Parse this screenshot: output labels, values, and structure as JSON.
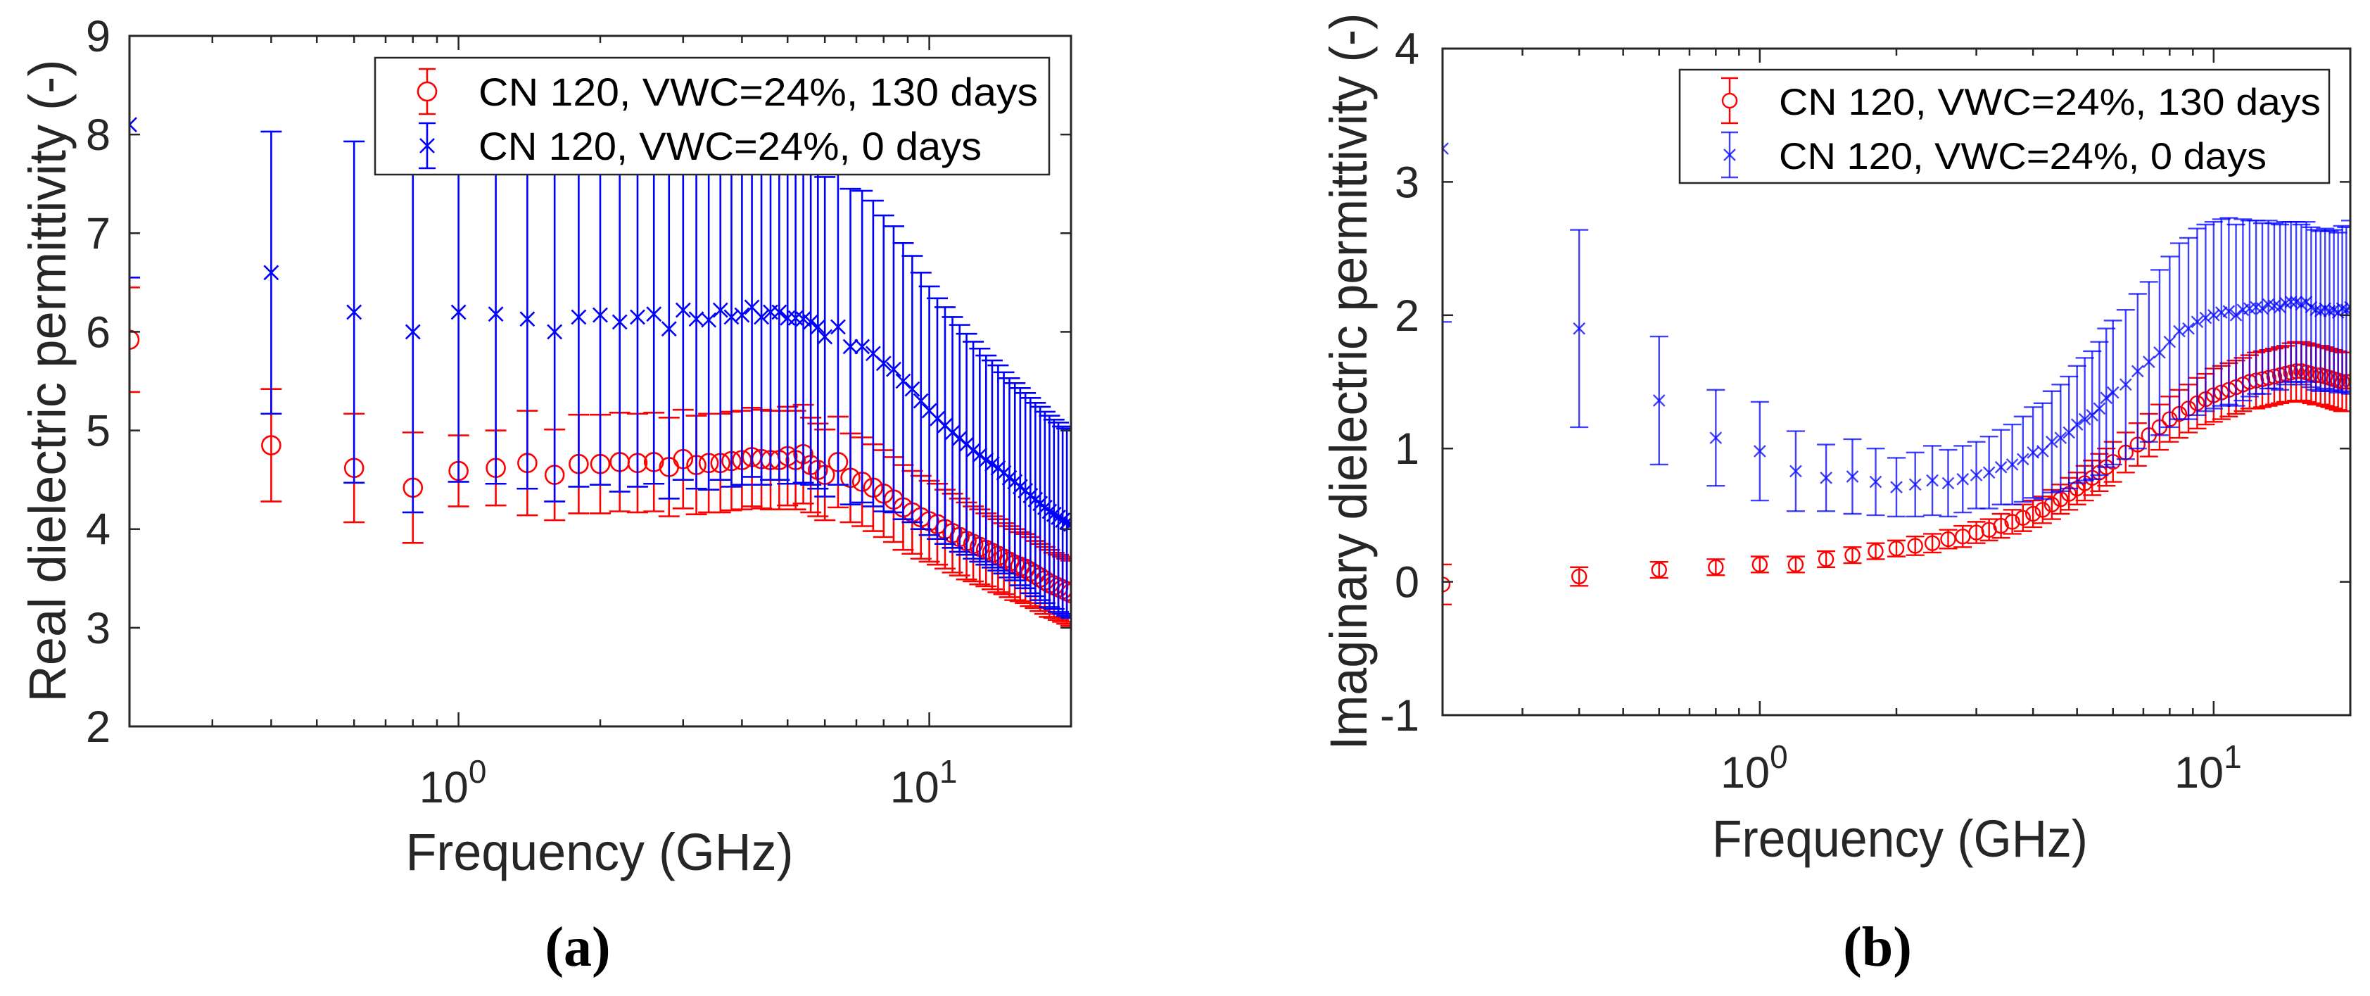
{
  "chart_data": [
    {
      "type": "scatter",
      "panel_caption": "(a)",
      "title": "",
      "xlabel": "Frequency (GHz)",
      "ylabel": "Real dielectric permittivity (-)",
      "xscale": "log",
      "xlim": [
        0.2,
        20
      ],
      "ylim": [
        2,
        9
      ],
      "yticks": [
        2,
        3,
        4,
        5,
        6,
        7,
        8,
        9
      ],
      "yticklabels": [
        "2",
        "3",
        "4",
        "5",
        "6",
        "7",
        "8",
        "9"
      ],
      "xticks": [
        1,
        10
      ],
      "xticklabels": [
        "10^0",
        "10^1"
      ],
      "grid": false,
      "legend_position": "top-right",
      "x": [
        0.2,
        0.4,
        0.6,
        0.8,
        1.0,
        1.2,
        1.4,
        1.6,
        1.8,
        2.0,
        2.2,
        2.4,
        2.6,
        2.8,
        3.0,
        3.2,
        3.4,
        3.6,
        3.8,
        4.0,
        4.2,
        4.4,
        4.6,
        4.8,
        5.0,
        5.2,
        5.4,
        5.6,
        5.8,
        6.0,
        6.4,
        6.8,
        7.2,
        7.6,
        8.0,
        8.4,
        8.8,
        9.2,
        9.6,
        10.0,
        10.4,
        10.8,
        11.2,
        11.6,
        12.0,
        12.4,
        12.8,
        13.2,
        13.6,
        14.0,
        14.4,
        14.8,
        15.2,
        15.6,
        16.0,
        16.4,
        16.8,
        17.2,
        17.6,
        18.0,
        18.4,
        18.8,
        19.2,
        19.6,
        20.0
      ],
      "series": [
        {
          "name": "CN 120, VWC=24%, 130 days",
          "color": "#ff0000",
          "marker": "circle",
          "values": [
            5.92,
            4.85,
            4.62,
            4.42,
            4.59,
            4.62,
            4.67,
            4.55,
            4.66,
            4.66,
            4.68,
            4.67,
            4.68,
            4.63,
            4.71,
            4.65,
            4.67,
            4.67,
            4.69,
            4.7,
            4.73,
            4.71,
            4.7,
            4.7,
            4.74,
            4.7,
            4.76,
            4.65,
            4.6,
            4.55,
            4.68,
            4.52,
            4.48,
            4.42,
            4.36,
            4.3,
            4.22,
            4.17,
            4.12,
            4.08,
            4.05,
            4.0,
            3.96,
            3.92,
            3.88,
            3.85,
            3.82,
            3.79,
            3.76,
            3.73,
            3.7,
            3.67,
            3.64,
            3.62,
            3.6,
            3.57,
            3.54,
            3.51,
            3.48,
            3.45,
            3.43,
            3.41,
            3.39,
            3.37,
            3.35
          ],
          "error": [
            0.53,
            0.57,
            0.55,
            0.56,
            0.36,
            0.38,
            0.53,
            0.46,
            0.5,
            0.5,
            0.5,
            0.5,
            0.5,
            0.5,
            0.5,
            0.5,
            0.5,
            0.5,
            0.5,
            0.5,
            0.5,
            0.5,
            0.5,
            0.5,
            0.5,
            0.5,
            0.5,
            0.48,
            0.47,
            0.46,
            0.46,
            0.45,
            0.45,
            0.44,
            0.44,
            0.43,
            0.43,
            0.42,
            0.42,
            0.41,
            0.41,
            0.4,
            0.4,
            0.39,
            0.39,
            0.38,
            0.38,
            0.37,
            0.37,
            0.37,
            0.36,
            0.36,
            0.36,
            0.35,
            0.35,
            0.35,
            0.34,
            0.34,
            0.34,
            0.34,
            0.33,
            0.33,
            0.33,
            0.33,
            0.33
          ]
        },
        {
          "name": "CN 120, VWC=24%, 0 days",
          "color": "#0000ff",
          "marker": "x",
          "values": [
            8.1,
            6.6,
            6.2,
            6.0,
            6.2,
            6.18,
            6.13,
            6.0,
            6.15,
            6.17,
            6.1,
            6.15,
            6.18,
            6.03,
            6.22,
            6.13,
            6.12,
            6.22,
            6.15,
            6.17,
            6.25,
            6.15,
            6.2,
            6.2,
            6.14,
            6.14,
            6.13,
            6.1,
            6.05,
            5.95,
            6.05,
            5.85,
            5.85,
            5.78,
            5.68,
            5.62,
            5.5,
            5.42,
            5.3,
            5.2,
            5.12,
            5.05,
            4.98,
            4.92,
            4.86,
            4.8,
            4.75,
            4.7,
            4.66,
            4.62,
            4.57,
            4.52,
            4.48,
            4.43,
            4.39,
            4.34,
            4.3,
            4.26,
            4.22,
            4.18,
            4.15,
            4.12,
            4.09,
            4.07,
            4.05
          ],
          "error": [
            1.55,
            1.43,
            1.73,
            1.83,
            1.72,
            1.72,
            1.72,
            1.72,
            1.72,
            1.72,
            1.72,
            1.72,
            1.72,
            1.72,
            1.72,
            1.72,
            1.72,
            1.72,
            1.72,
            1.72,
            1.72,
            1.7,
            1.7,
            1.7,
            1.68,
            1.68,
            1.66,
            1.65,
            1.64,
            1.62,
            1.6,
            1.6,
            1.58,
            1.55,
            1.5,
            1.45,
            1.4,
            1.35,
            1.3,
            1.26,
            1.22,
            1.2,
            1.17,
            1.15,
            1.12,
            1.1,
            1.08,
            1.06,
            1.05,
            1.04,
            1.02,
            1.01,
            1.0,
            1.0,
            0.99,
            0.99,
            0.98,
            0.98,
            0.97,
            0.97,
            0.96,
            0.96,
            0.95,
            0.95,
            0.95
          ]
        }
      ]
    },
    {
      "type": "scatter",
      "panel_caption": "(b)",
      "title": "",
      "xlabel": "Frequency (GHz)",
      "ylabel": "Imaginary dielectric permittivity (-)",
      "xscale": "log",
      "xlim": [
        0.2,
        20
      ],
      "ylim": [
        -1,
        4
      ],
      "yticks": [
        -1,
        0,
        1,
        2,
        3,
        4
      ],
      "yticklabels": [
        "-1",
        "0",
        "1",
        "2",
        "3",
        "4"
      ],
      "xticks": [
        1,
        10
      ],
      "xticklabels": [
        "10^0",
        "10^1"
      ],
      "grid": false,
      "legend_position": "top-right",
      "x": [
        0.2,
        0.4,
        0.6,
        0.8,
        1.0,
        1.2,
        1.4,
        1.6,
        1.8,
        2.0,
        2.2,
        2.4,
        2.6,
        2.8,
        3.0,
        3.2,
        3.4,
        3.6,
        3.8,
        4.0,
        4.2,
        4.4,
        4.6,
        4.8,
        5.0,
        5.2,
        5.4,
        5.6,
        5.8,
        6.0,
        6.4,
        6.8,
        7.2,
        7.6,
        8.0,
        8.4,
        8.8,
        9.2,
        9.6,
        10.0,
        10.4,
        10.8,
        11.2,
        11.6,
        12.0,
        12.4,
        12.8,
        13.2,
        13.6,
        14.0,
        14.4,
        14.8,
        15.2,
        15.6,
        16.0,
        16.4,
        16.8,
        17.2,
        17.6,
        18.0,
        18.4,
        18.8,
        19.2,
        19.6,
        20.0
      ],
      "series": [
        {
          "name": "CN 120, VWC=24%, 130 days",
          "color": "#ff0000",
          "marker": "circle",
          "values": [
            -0.02,
            0.04,
            0.09,
            0.11,
            0.13,
            0.13,
            0.17,
            0.2,
            0.23,
            0.25,
            0.27,
            0.29,
            0.32,
            0.34,
            0.37,
            0.39,
            0.42,
            0.45,
            0.48,
            0.51,
            0.54,
            0.58,
            0.62,
            0.66,
            0.7,
            0.74,
            0.78,
            0.82,
            0.86,
            0.9,
            0.97,
            1.03,
            1.1,
            1.16,
            1.22,
            1.26,
            1.3,
            1.34,
            1.37,
            1.4,
            1.42,
            1.44,
            1.46,
            1.48,
            1.5,
            1.51,
            1.52,
            1.53,
            1.54,
            1.55,
            1.56,
            1.57,
            1.58,
            1.58,
            1.57,
            1.56,
            1.55,
            1.55,
            1.54,
            1.53,
            1.52,
            1.51,
            1.5,
            1.5,
            1.5
          ],
          "error": [
            0.15,
            0.07,
            0.06,
            0.06,
            0.06,
            0.06,
            0.06,
            0.06,
            0.06,
            0.06,
            0.07,
            0.07,
            0.07,
            0.08,
            0.08,
            0.08,
            0.09,
            0.09,
            0.1,
            0.1,
            0.1,
            0.11,
            0.11,
            0.12,
            0.12,
            0.13,
            0.13,
            0.14,
            0.14,
            0.15,
            0.15,
            0.16,
            0.16,
            0.17,
            0.17,
            0.18,
            0.18,
            0.19,
            0.19,
            0.2,
            0.2,
            0.2,
            0.2,
            0.2,
            0.2,
            0.21,
            0.21,
            0.21,
            0.21,
            0.21,
            0.21,
            0.22,
            0.22,
            0.22,
            0.22,
            0.22,
            0.22,
            0.22,
            0.22,
            0.22,
            0.22,
            0.22,
            0.22,
            0.22,
            0.22
          ]
        },
        {
          "name": "CN 120, VWC=24%, 0 days",
          "color": "#0000ff",
          "marker": "x",
          "values": [
            3.25,
            1.9,
            1.36,
            1.08,
            0.98,
            0.83,
            0.78,
            0.79,
            0.75,
            0.71,
            0.73,
            0.76,
            0.74,
            0.77,
            0.8,
            0.82,
            0.86,
            0.88,
            0.92,
            0.97,
            0.98,
            1.05,
            1.08,
            1.12,
            1.18,
            1.22,
            1.25,
            1.3,
            1.38,
            1.42,
            1.48,
            1.58,
            1.65,
            1.72,
            1.8,
            1.88,
            1.9,
            1.95,
            1.98,
            2.0,
            2.02,
            2.03,
            2.0,
            2.04,
            2.05,
            2.06,
            2.05,
            2.08,
            2.07,
            2.06,
            2.09,
            2.1,
            2.1,
            2.08,
            2.1,
            2.06,
            2.04,
            2.03,
            2.05,
            2.03,
            2.04,
            2.02,
            2.05,
            2.04,
            2.06
          ],
          "error": [
            1.3,
            0.74,
            0.48,
            0.36,
            0.37,
            0.3,
            0.25,
            0.28,
            0.25,
            0.22,
            0.24,
            0.26,
            0.25,
            0.25,
            0.25,
            0.27,
            0.28,
            0.3,
            0.32,
            0.34,
            0.36,
            0.38,
            0.4,
            0.42,
            0.44,
            0.46,
            0.48,
            0.5,
            0.52,
            0.54,
            0.56,
            0.58,
            0.6,
            0.62,
            0.64,
            0.66,
            0.68,
            0.7,
            0.7,
            0.7,
            0.7,
            0.7,
            0.68,
            0.68,
            0.66,
            0.65,
            0.64,
            0.63,
            0.62,
            0.62,
            0.61,
            0.6,
            0.6,
            0.6,
            0.6,
            0.6,
            0.6,
            0.6,
            0.6,
            0.6,
            0.6,
            0.6,
            0.62,
            0.62,
            0.65
          ]
        }
      ]
    }
  ]
}
